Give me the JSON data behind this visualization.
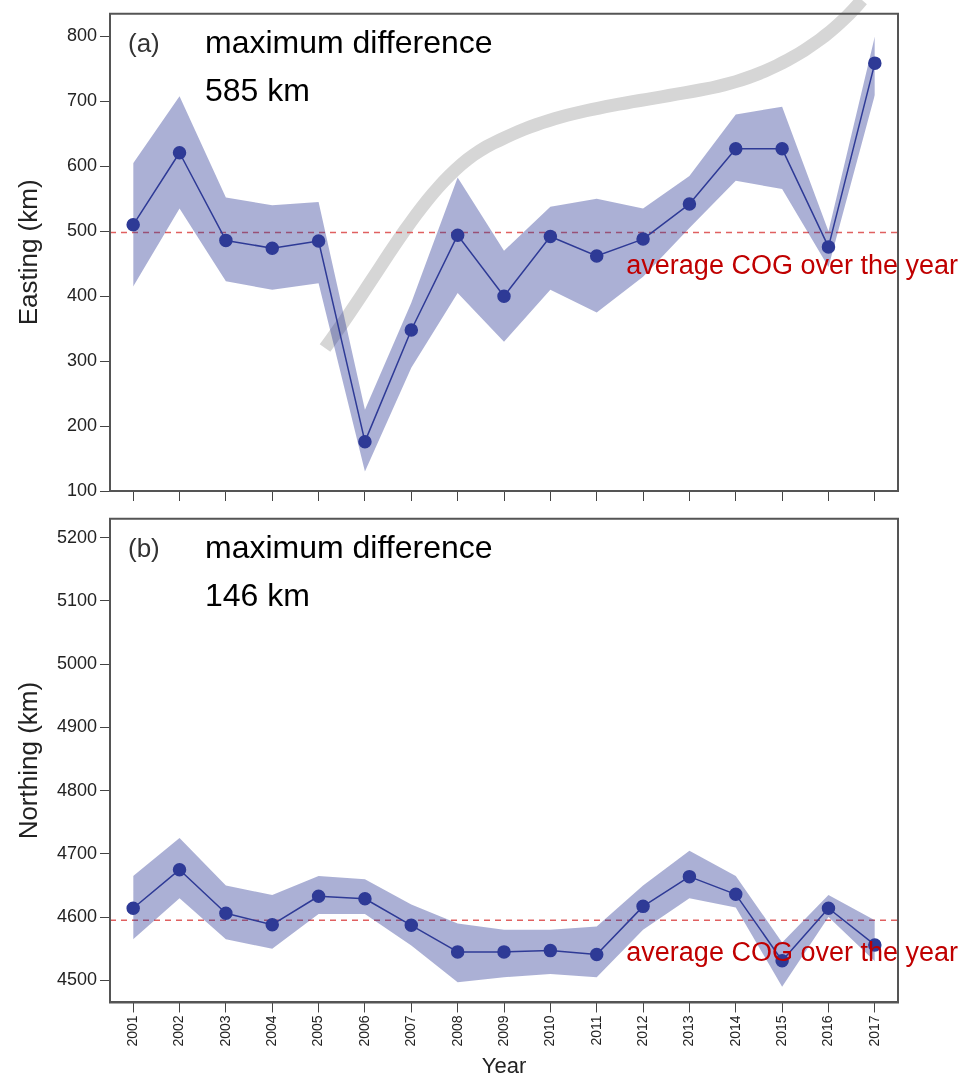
{
  "chart_data": [
    {
      "type": "line",
      "categories": [
        "2001",
        "2002",
        "2003",
        "2004",
        "2005",
        "2006",
        "2007",
        "2008",
        "2009",
        "2010",
        "2011",
        "2012",
        "2013",
        "2014",
        "2015",
        "2016",
        "2017"
      ],
      "series": [
        {
          "color": "#2e3a96",
          "values": [
            510,
            621,
            486,
            474,
            485,
            176,
            348,
            494,
            400,
            492,
            462,
            488,
            542,
            627,
            627,
            476,
            759
          ],
          "lower": [
            415,
            535,
            423,
            410,
            420,
            130,
            290,
            405,
            330,
            410,
            375,
            430,
            505,
            578,
            565,
            445,
            710
          ],
          "upper": [
            605,
            708,
            552,
            540,
            545,
            225,
            390,
            583,
            470,
            538,
            550,
            535,
            585,
            680,
            692,
            500,
            800
          ]
        }
      ],
      "ylabel": "Easting (km)",
      "ylim": [
        100,
        835
      ],
      "yticks": [
        100,
        200,
        300,
        400,
        500,
        600,
        700,
        800
      ],
      "tick_labels": "y",
      "grid": false,
      "marker": "circle",
      "line_style": "solid",
      "ref_lines": [
        {
          "axis": "y",
          "value": 498,
          "label": "average COG over the year",
          "color": "#e06060",
          "line_style": "dashed"
        }
      ],
      "annotations": [
        "(a)",
        "maximum difference\n585 km"
      ]
    },
    {
      "type": "line",
      "categories": [
        "2001",
        "2002",
        "2003",
        "2004",
        "2005",
        "2006",
        "2007",
        "2008",
        "2009",
        "2010",
        "2011",
        "2012",
        "2013",
        "2014",
        "2015",
        "2016",
        "2017"
      ],
      "series": [
        {
          "color": "#2e3a96",
          "values": [
            4614,
            4675,
            4606,
            4588,
            4633,
            4629,
            4587,
            4545,
            4545,
            4547,
            4541,
            4617,
            4664,
            4636,
            4531,
            4614,
            4556
          ],
          "lower": [
            4565,
            4630,
            4565,
            4550,
            4605,
            4605,
            4555,
            4497,
            4505,
            4510,
            4505,
            4580,
            4630,
            4615,
            4490,
            4600,
            4530
          ],
          "upper": [
            4665,
            4725,
            4650,
            4635,
            4665,
            4660,
            4620,
            4590,
            4580,
            4580,
            4585,
            4650,
            4705,
            4665,
            4560,
            4635,
            4595
          ]
        }
      ],
      "xlabel": "Year",
      "ylabel": "Northing (km)",
      "ylim": [
        4465,
        5230
      ],
      "yticks": [
        4500,
        4600,
        4700,
        4800,
        4900,
        5000,
        5100,
        5200
      ],
      "grid": false,
      "marker": "circle",
      "line_style": "solid",
      "ref_lines": [
        {
          "axis": "y",
          "value": 4595,
          "label": "average COG over the year",
          "color": "#e06060",
          "line_style": "dashed"
        }
      ],
      "annotations": [
        "(b)",
        "maximum difference\n146 km"
      ]
    }
  ]
}
